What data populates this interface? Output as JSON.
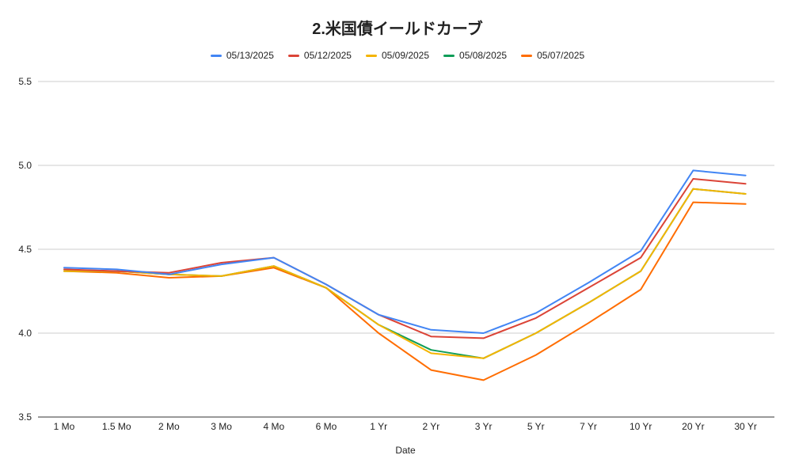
{
  "chart_data": {
    "type": "line",
    "title": "2.米国債イールドカーブ",
    "xlabel": "Date",
    "ylabel": "",
    "ylim": [
      3.5,
      5.5
    ],
    "yticks": [
      "3.5",
      "4.0",
      "4.5",
      "5.0",
      "5.5"
    ],
    "grid": true,
    "legend_position": "top",
    "categories": [
      "1 Mo",
      "1.5 Mo",
      "2 Mo",
      "3 Mo",
      "4 Mo",
      "6 Mo",
      "1 Yr",
      "2 Yr",
      "3 Yr",
      "5 Yr",
      "7 Yr",
      "10 Yr",
      "20 Yr",
      "30 Yr"
    ],
    "series": [
      {
        "name": "05/13/2025",
        "color": "#4285f4",
        "values": [
          4.39,
          4.38,
          4.35,
          4.41,
          4.45,
          4.29,
          4.11,
          4.02,
          4.0,
          4.12,
          4.3,
          4.49,
          4.97,
          4.94
        ]
      },
      {
        "name": "05/12/2025",
        "color": "#db4437",
        "values": [
          4.38,
          4.37,
          4.36,
          4.42,
          4.45,
          4.29,
          4.11,
          3.98,
          3.97,
          4.09,
          4.27,
          4.45,
          4.92,
          4.89
        ]
      },
      {
        "name": "05/09/2025",
        "color": "#f4b400",
        "values": [
          4.37,
          4.37,
          4.35,
          4.34,
          4.4,
          4.27,
          4.05,
          3.88,
          3.85,
          4.0,
          4.18,
          4.37,
          4.86,
          4.83
        ]
      },
      {
        "name": "05/08/2025",
        "color": "#0f9d58",
        "values": [
          4.37,
          4.37,
          4.35,
          4.34,
          4.4,
          4.27,
          4.05,
          3.9,
          3.85,
          4.0,
          4.18,
          4.37,
          4.86,
          4.83
        ]
      },
      {
        "name": "05/07/2025",
        "color": "#ff6d01",
        "values": [
          4.37,
          4.36,
          4.33,
          4.34,
          4.39,
          4.27,
          4.0,
          3.78,
          3.72,
          3.87,
          4.06,
          4.26,
          4.78,
          4.77
        ]
      }
    ]
  }
}
